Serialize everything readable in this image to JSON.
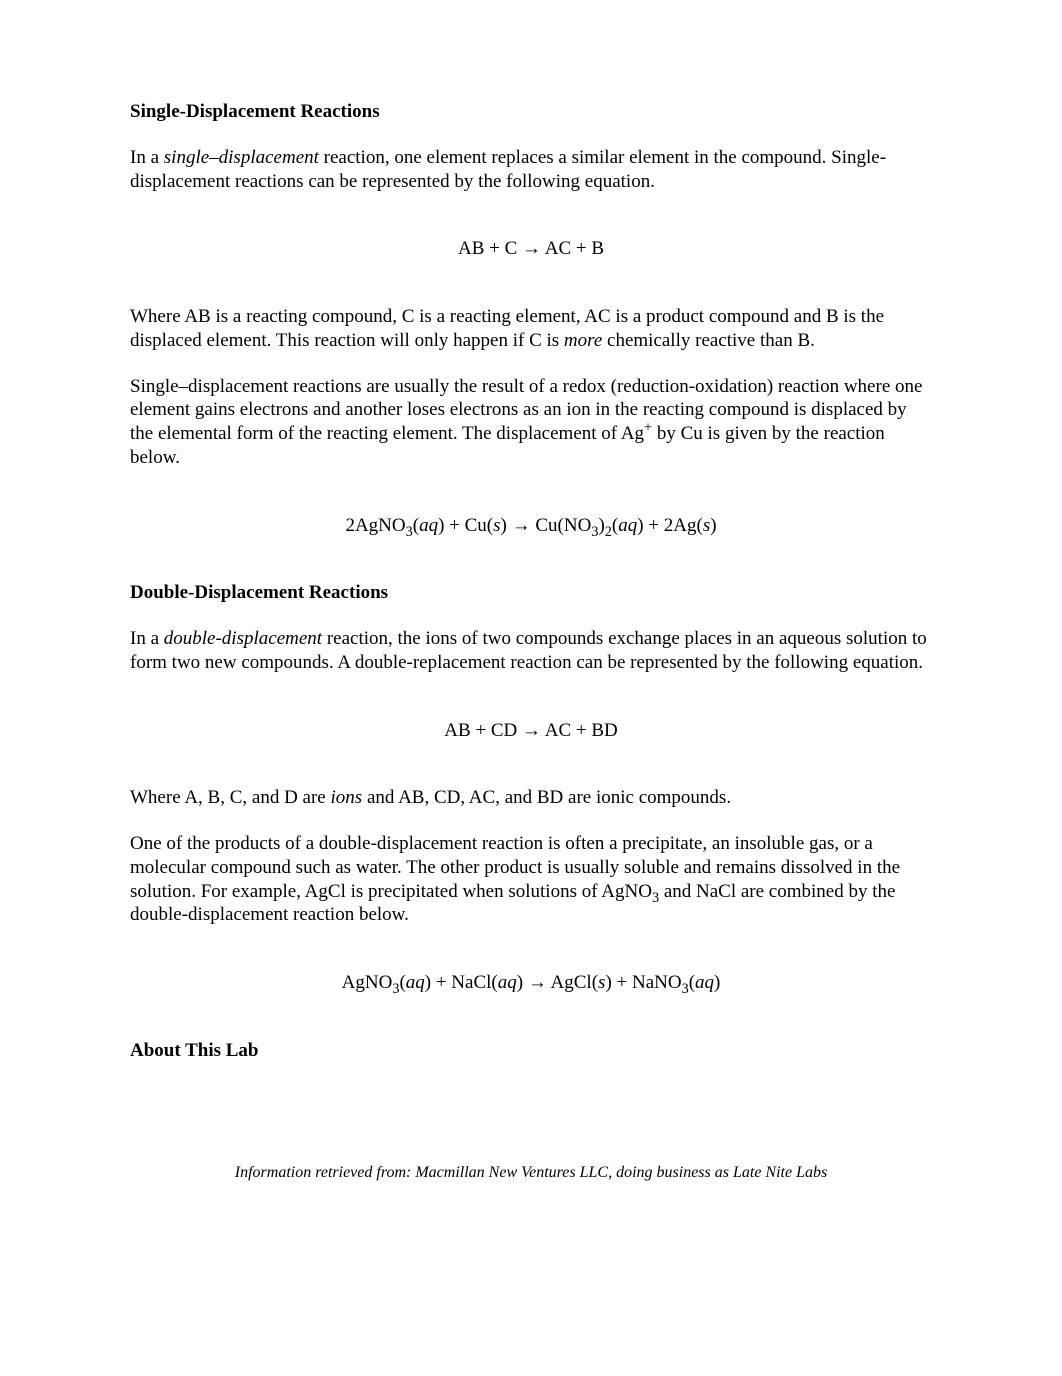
{
  "section1": {
    "heading": "Single-Displacement Reactions",
    "p1_a": "In a ",
    "p1_em": "single–displacement",
    "p1_b": " reaction, one element replaces a similar element in the compound. Single-displacement reactions can be represented by the following equation.",
    "eq1": "AB + C  →  AC + B",
    "p2_a": "Where AB is a reacting compound, C is a reacting element, AC is a product compound and B is the displaced element. This reaction will only happen if C is ",
    "p2_em": "more",
    "p2_b": " chemically reactive than B.",
    "p3_a": "Single–displacement reactions are usually the result of a redox (reduction-oxidation) reaction where one element gains electrons and another loses electrons as an ion in the reacting compound is displaced by the elemental form of the reacting element. The displacement of Ag",
    "p3_sup": "+",
    "p3_b": " by Cu is given by the reaction below.",
    "eq2_a": "2AgNO",
    "eq2_b": "3",
    "eq2_c": "(",
    "eq2_d": "aq",
    "eq2_e": ") + Cu(",
    "eq2_f": "s",
    "eq2_g": ")  →  Cu(NO",
    "eq2_h": "3",
    "eq2_i": ")",
    "eq2_j": "2",
    "eq2_k": "(",
    "eq2_l": "aq",
    "eq2_m": ") + 2Ag(",
    "eq2_n": "s",
    "eq2_o": ")"
  },
  "section2": {
    "heading": "Double-Displacement Reactions",
    "p1_a": "In a ",
    "p1_em": "double-displacement",
    "p1_b": " reaction, the ions of two compounds exchange places in an aqueous solution to form two new compounds. A double-replacement reaction can be represented by the following equation.",
    "eq1": "AB + CD  → AC + BD",
    "p2_a": "Where A, B, C, and D are ",
    "p2_em": "ions",
    "p2_b": " and AB, CD, AC, and BD are ionic compounds.",
    "p3_a": "One of the products of a double-displacement reaction is often a precipitate, an insoluble gas, or a molecular compound such as water. The other product is usually soluble and remains dissolved in the solution. For example, AgCl is precipitated when solutions of AgNO",
    "p3_sub": "3",
    "p3_b": " and NaCl are combined by the double-displacement reaction below.",
    "eq2_a": "AgNO",
    "eq2_b": "3",
    "eq2_c": "(",
    "eq2_d": "aq",
    "eq2_e": ") + NaCl(",
    "eq2_f": "aq",
    "eq2_g": ")  →  AgCl(",
    "eq2_h": "s",
    "eq2_i": ") + NaNO",
    "eq2_j": "3",
    "eq2_k": "(",
    "eq2_l": "aq",
    "eq2_m": ")"
  },
  "section3": {
    "heading": "About This Lab"
  },
  "footer": "Information retrieved from: Macmillan New Ventures LLC, doing business as Late Nite Labs"
}
